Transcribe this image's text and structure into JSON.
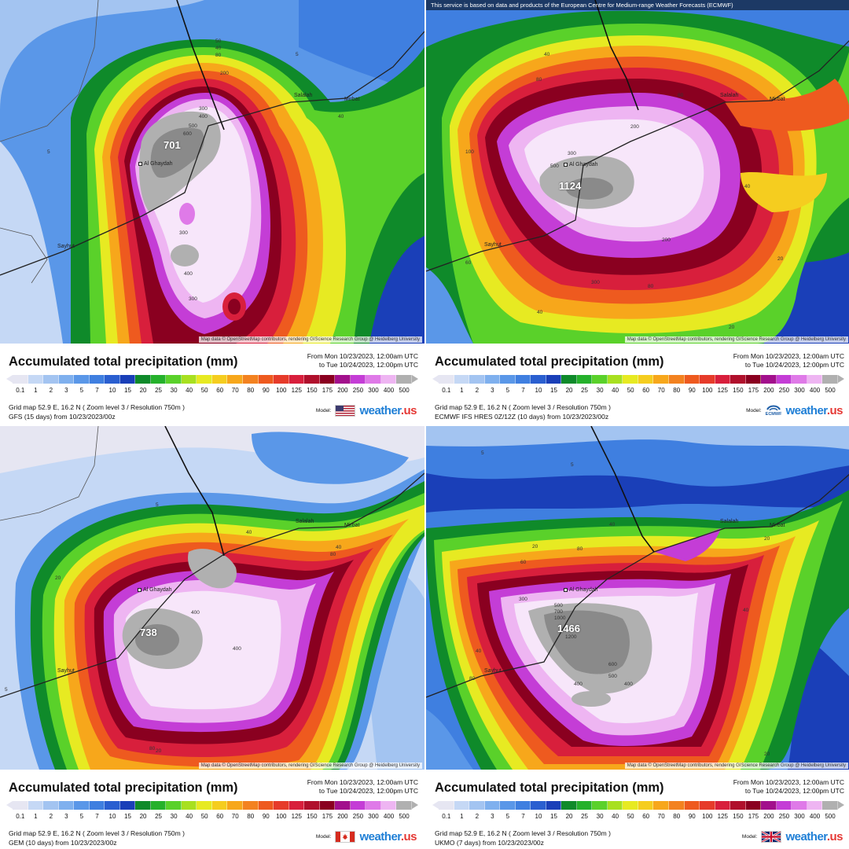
{
  "panels": [
    {
      "model_flag_icon": "usa-flag-icon",
      "banner": "",
      "credit": "Map data © OpenStreetMap contributors, rendering GIScience Research Group @ Heidelberg University",
      "max_value": "701",
      "cities": {
        "al_ghaydah": "Al Ghaydah",
        "salalah": "Salalah",
        "mirbat": "Mirbat",
        "sayhut": "Sayhut"
      },
      "contours": [
        "50",
        "40",
        "80",
        "200",
        "300",
        "400",
        "500",
        "600",
        "300",
        "400",
        "300",
        "5",
        "40",
        "5"
      ],
      "title": "Accumulated total precipitation (mm)",
      "period_from": "From Mon 10/23/2023, 12:00am UTC",
      "period_to": "to Tue 10/24/2023, 12:00pm UTC",
      "grid": "Grid map 52.9 E, 16.2 N  ( Zoom level 3 / Resolution 750m )",
      "model_line": "GFS  (15 days)  from  10/23/2023/00z",
      "model_label": "Model:",
      "brand": "weather.us"
    },
    {
      "model_flag_icon": "ecmwf-logo-icon",
      "banner": "This service is based on data and products of the European Centre for Medium-range Weather Forecasts (ECMWF)",
      "credit": "Map data © OpenStreetMap contributors, rendering GIScience Research Group @ Heidelberg University",
      "max_value": "1124",
      "cities": {
        "al_ghaydah": "Al Ghaydah",
        "salalah": "Salalah",
        "mirbat": "Mirbat",
        "sayhut": "Sayhut"
      },
      "contours": [
        "40",
        "80",
        "80",
        "200",
        "300",
        "500",
        "100",
        "200",
        "300",
        "80",
        "40",
        "40",
        "20",
        "20",
        "60"
      ],
      "title": "Accumulated total precipitation (mm)",
      "period_from": "From Mon 10/23/2023, 12:00am UTC",
      "period_to": "to Tue 10/24/2023, 12:00pm UTC",
      "grid": "Grid map 52.9 E, 16.2 N  ( Zoom level 3 / Resolution 750m )",
      "model_line": "ECMWF IFS HRES 0Z/12Z  (10 days)  from  10/23/2023/00z",
      "model_label": "Model:",
      "model_sub": "ECMWF",
      "brand": "weather.us"
    },
    {
      "model_flag_icon": "canada-flag-icon",
      "banner": "",
      "credit": "Map data © OpenStreetMap contributors, rendering GIScience Research Group @ Heidelberg University",
      "max_value": "738",
      "cities": {
        "al_ghaydah": "Al Ghaydah",
        "salalah": "Salalah",
        "mirbat": "Mirbat",
        "sayhut": "Sayhut"
      },
      "contours": [
        "20",
        "5",
        "40",
        "40",
        "80",
        "20",
        "400",
        "400",
        "5",
        "80"
      ],
      "title": "Accumulated total precipitation (mm)",
      "period_from": "From Mon 10/23/2023, 12:00am UTC",
      "period_to": "to Tue 10/24/2023, 12:00pm UTC",
      "grid": "Grid map 52.9 E, 16.2 N  ( Zoom level 3 / Resolution 750m )",
      "model_line": "GEM  (10 days)  from  10/23/2023/00z",
      "model_label": "Model:",
      "brand": "weather.us"
    },
    {
      "model_flag_icon": "uk-flag-icon",
      "banner": "",
      "credit": "Map data © OpenStreetMap contributors, rendering GIScience Research Group @ Heidelberg University",
      "max_value": "1466",
      "cities": {
        "al_ghaydah": "Al Ghaydah",
        "salalah": "Salalah",
        "mirbat": "Mirbat",
        "sayhut": "Sayhut"
      },
      "contours": [
        "5",
        "5",
        "40",
        "80",
        "20",
        "60",
        "300",
        "500",
        "700",
        "1000",
        "1200",
        "600",
        "500",
        "400",
        "400",
        "40",
        "40",
        "80",
        "20",
        "20"
      ],
      "title": "Accumulated total precipitation (mm)",
      "period_from": "From Mon 10/23/2023, 12:00am UTC",
      "period_to": "to Tue 10/24/2023, 12:00pm UTC",
      "grid": "Grid map 52.9 E, 16.2 N  ( Zoom level 3 / Resolution 750m )",
      "model_line": "UKMO  (7 days)  from  10/23/2023/00z",
      "model_label": "Model:",
      "brand": "weather.us"
    }
  ],
  "scale_ticks": [
    "0.1",
    "1",
    "2",
    "3",
    "5",
    "7",
    "10",
    "15",
    "20",
    "25",
    "30",
    "40",
    "50",
    "60",
    "70",
    "80",
    "90",
    "100",
    "125",
    "150",
    "175",
    "200",
    "250",
    "300",
    "400",
    "500"
  ],
  "scale_colors": [
    "#e6e6f2",
    "#c5d8f5",
    "#a3c4f1",
    "#7fb0ee",
    "#5a97e8",
    "#3f7fe0",
    "#2a5fd0",
    "#1a3fb8",
    "#0f8a2a",
    "#25b12b",
    "#5ad12a",
    "#a8e020",
    "#e7ea22",
    "#f5cd1f",
    "#f7a71b",
    "#f38220",
    "#ee5a1f",
    "#e63b2a",
    "#d81f3c",
    "#b0102c",
    "#8a0020",
    "#a2108c",
    "#c43dd6",
    "#df7ae8",
    "#eeb5f2",
    "#b0b0b0"
  ],
  "colors": {
    "low_blue": "#5a97e8",
    "deep_blue": "#1a3fb8",
    "green": "#25b12b",
    "yellow": "#e7ea22",
    "orange": "#f38220",
    "red": "#d81f3c",
    "darkred": "#8a0020",
    "magenta": "#c43dd6",
    "pink": "#eeb5f2",
    "gray": "#b0b0b0"
  }
}
